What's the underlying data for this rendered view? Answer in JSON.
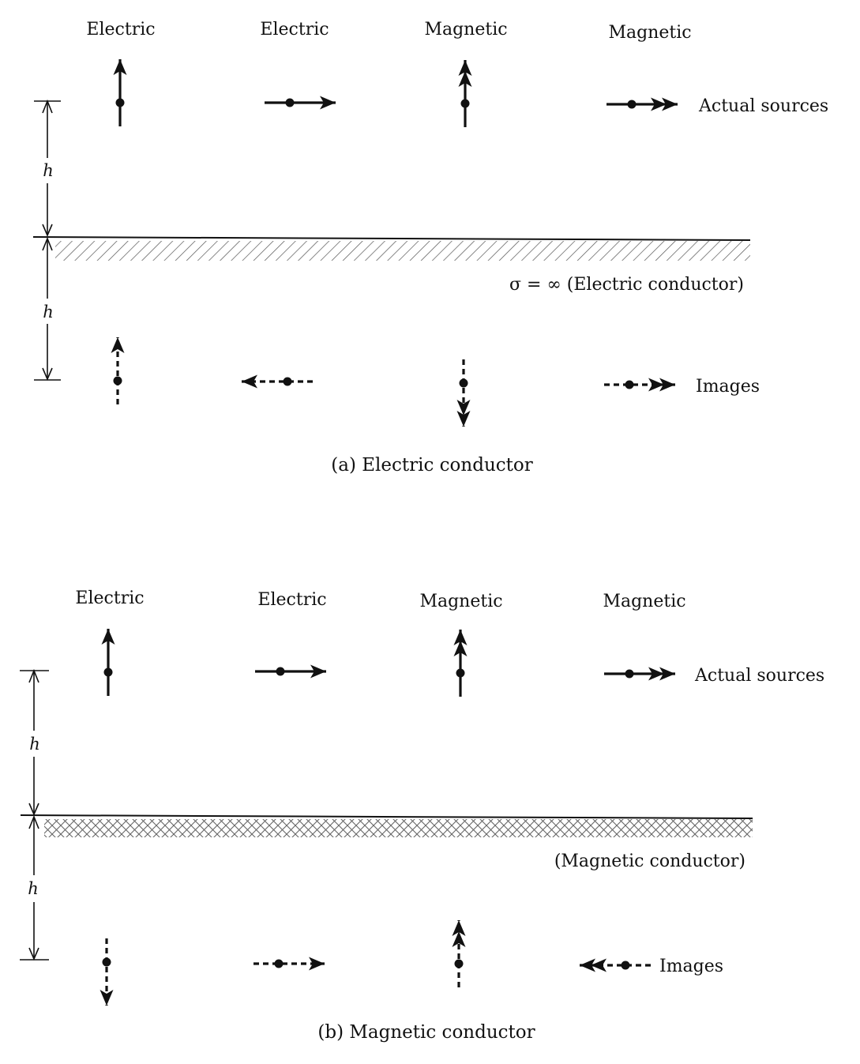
{
  "panels": [
    {
      "id": "a",
      "column_labels": [
        "Electric",
        "Electric",
        "Magnetic",
        "Magnetic"
      ],
      "sources_label": "Actual sources",
      "images_label": "Images",
      "distance_label": "h",
      "ground_label": "σ = ∞ (Electric conductor)",
      "caption": "(a)  Electric conductor",
      "sources": [
        {
          "type": "electric",
          "direction": "up"
        },
        {
          "type": "electric",
          "direction": "right"
        },
        {
          "type": "magnetic",
          "direction": "up"
        },
        {
          "type": "magnetic",
          "direction": "right"
        }
      ],
      "images": [
        {
          "type": "electric",
          "direction": "up"
        },
        {
          "type": "electric",
          "direction": "left"
        },
        {
          "type": "magnetic",
          "direction": "down"
        },
        {
          "type": "magnetic",
          "direction": "right"
        }
      ]
    },
    {
      "id": "b",
      "column_labels": [
        "Electric",
        "Electric",
        "Magnetic",
        "Magnetic"
      ],
      "sources_label": "Actual sources",
      "images_label": "Images",
      "distance_label": "h",
      "ground_label": "(Magnetic conductor)",
      "caption": "(b)  Magnetic conductor",
      "sources": [
        {
          "type": "electric",
          "direction": "up"
        },
        {
          "type": "electric",
          "direction": "right"
        },
        {
          "type": "magnetic",
          "direction": "up"
        },
        {
          "type": "magnetic",
          "direction": "right"
        }
      ],
      "images": [
        {
          "type": "electric",
          "direction": "down"
        },
        {
          "type": "electric",
          "direction": "right"
        },
        {
          "type": "magnetic",
          "direction": "up"
        },
        {
          "type": "magnetic",
          "direction": "left"
        }
      ]
    }
  ]
}
